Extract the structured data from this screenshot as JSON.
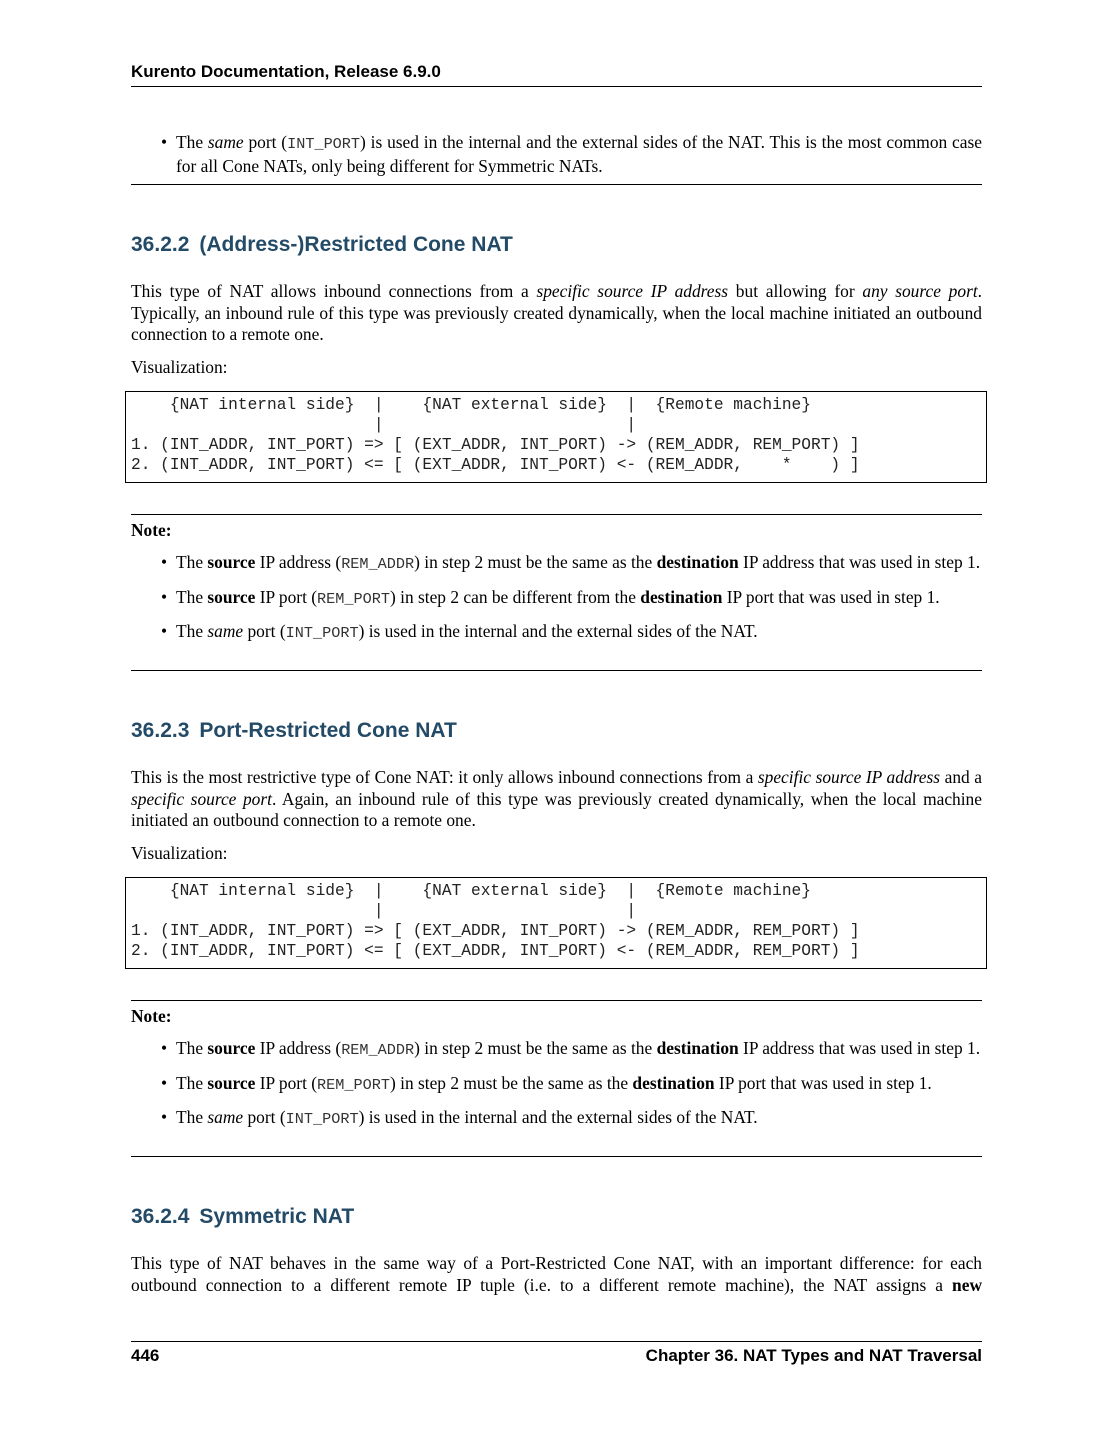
{
  "header": {
    "title": "Kurento Documentation, Release 6.9.0"
  },
  "top_note": {
    "b1": [
      "The ",
      "same",
      " port (",
      "INT_PORT",
      ") is used in the internal and the external sides of the NAT. This is the most common case for all Cone NATs, only being different for Symmetric NATs."
    ]
  },
  "s1": {
    "num": "36.2.2",
    "title": "(Address-)Restricted Cone NAT",
    "para": [
      "This type of NAT allows inbound connections from a ",
      "specific source IP address",
      " but allowing for ",
      "any source port",
      ". Typically, an inbound rule of this type was previously created dynamically, when the local machine initiated an outbound connection to a remote one."
    ],
    "vis": "Visualization:",
    "code": [
      "    {NAT internal side}  |    {NAT external side}  |  {Remote machine}",
      "                         |                         |",
      "1. (INT_ADDR, INT_PORT) => [ (EXT_ADDR, INT_PORT) -> (REM_ADDR, REM_PORT) ]",
      "2. (INT_ADDR, INT_PORT) <= [ (EXT_ADDR, INT_PORT) <- (REM_ADDR,    *    ) ]"
    ],
    "note_label": "Note:",
    "b1": [
      "The ",
      "source",
      " IP address (",
      "REM_ADDR",
      ") in step 2 must be the same as the ",
      "destination",
      " IP address that was used in step 1."
    ],
    "b2": [
      "The ",
      "source",
      " IP port (",
      "REM_PORT",
      ") in step 2 can be different from the ",
      "destination",
      " IP port that was used in step 1."
    ],
    "b3": [
      "The ",
      "same",
      " port (",
      "INT_PORT",
      ") is used in the internal and the external sides of the NAT."
    ]
  },
  "s2": {
    "num": "36.2.3",
    "title": "Port-Restricted Cone NAT",
    "para": [
      "This is the most restrictive type of Cone NAT: it only allows inbound connections from a ",
      "specific source IP address",
      " and a ",
      "specific source port",
      ". Again, an inbound rule of this type was previously created dynamically, when the local machine initiated an outbound connection to a remote one."
    ],
    "vis": "Visualization:",
    "code": [
      "    {NAT internal side}  |    {NAT external side}  |  {Remote machine}",
      "                         |                         |",
      "1. (INT_ADDR, INT_PORT) => [ (EXT_ADDR, INT_PORT) -> (REM_ADDR, REM_PORT) ]",
      "2. (INT_ADDR, INT_PORT) <= [ (EXT_ADDR, INT_PORT) <- (REM_ADDR, REM_PORT) ]"
    ],
    "note_label": "Note:",
    "b1": [
      "The ",
      "source",
      " IP address (",
      "REM_ADDR",
      ") in step 2 must be the same as the ",
      "destination",
      " IP address that was used in step 1."
    ],
    "b2": [
      "The ",
      "source",
      " IP port (",
      "REM_PORT",
      ") in step 2 must be the same as the ",
      "destination",
      " IP port that was used in step 1."
    ],
    "b3": [
      "The ",
      "same",
      " port (",
      "INT_PORT",
      ") is used in the internal and the external sides of the NAT."
    ]
  },
  "s3": {
    "num": "36.2.4",
    "title": "Symmetric NAT",
    "para": [
      "This type of NAT behaves in the same way of a Port-Restricted Cone NAT, with an important difference: for each outbound connection to a different remote IP tuple (i.e.  to a different remote machine), the NAT assigns a ",
      "new"
    ]
  },
  "footer": {
    "page": "446",
    "chapter": "Chapter 36.  NAT Types and NAT Traversal"
  },
  "colors": {
    "heading": "#234a66"
  }
}
